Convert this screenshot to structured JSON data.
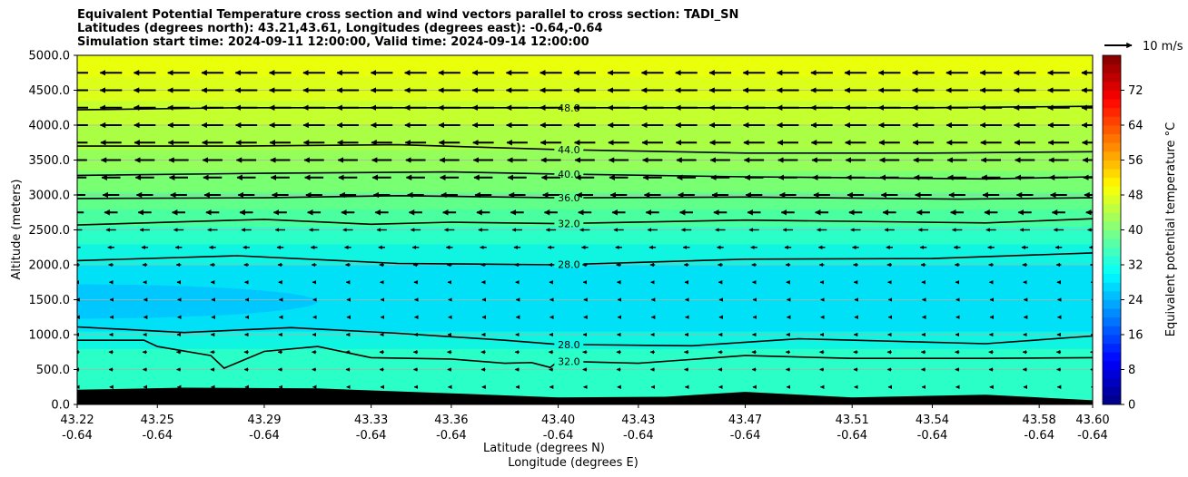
{
  "chart_data": {
    "type": "heatmap",
    "title_lines": [
      "Equivalent Potential Temperature cross section and wind vectors parallel to cross section: TADI_SN",
      "Latitudes (degrees north): 43.21,43.61, Longitudes (degrees east): -0.64,-0.64",
      "Simulation start time: 2024-09-11 12:00:00, Valid time: 2024-09-14 12:00:00"
    ],
    "ylabel": "Altitude (meters)",
    "xlabel_lines": [
      "Latitude (degrees N)",
      "Longitude (degrees E)"
    ],
    "ylim": [
      0,
      5000
    ],
    "y_ticks": [
      "0.0",
      "500.0",
      "1000.0",
      "1500.0",
      "2000.0",
      "2500.0",
      "3000.0",
      "3500.0",
      "4000.0",
      "4500.0",
      "5000.0"
    ],
    "x_ticks": [
      {
        "lat": "43.22",
        "lon": "-0.64"
      },
      {
        "lat": "43.25",
        "lon": "-0.64"
      },
      {
        "lat": "43.29",
        "lon": "-0.64"
      },
      {
        "lat": "43.33",
        "lon": "-0.64"
      },
      {
        "lat": "43.36",
        "lon": "-0.64"
      },
      {
        "lat": "43.40",
        "lon": "-0.64"
      },
      {
        "lat": "43.43",
        "lon": "-0.64"
      },
      {
        "lat": "43.47",
        "lon": "-0.64"
      },
      {
        "lat": "43.51",
        "lon": "-0.64"
      },
      {
        "lat": "43.54",
        "lon": "-0.64"
      },
      {
        "lat": "43.58",
        "lon": "-0.64"
      },
      {
        "lat": "43.60",
        "lon": "-0.64"
      }
    ],
    "colorbar": {
      "label": "Equivalent potential temperature °C",
      "range": [
        0,
        80
      ],
      "ticks": [
        "0",
        "8",
        "16",
        "24",
        "32",
        "40",
        "48",
        "56",
        "64",
        "72"
      ]
    },
    "wind_key": {
      "label": "10 m/s"
    },
    "fill_bands": [
      {
        "from_alt": 0,
        "to_alt": 800,
        "color": "#2bffc8"
      },
      {
        "from_alt": 800,
        "to_alt": 1050,
        "color": "#10f4e2"
      },
      {
        "from_alt": 1050,
        "to_alt": 2000,
        "color": "#00e1f8"
      },
      {
        "from_alt": 2000,
        "to_alt": 2300,
        "color": "#10f4e2"
      },
      {
        "from_alt": 2300,
        "to_alt": 2550,
        "color": "#2bffc8"
      },
      {
        "from_alt": 2550,
        "to_alt": 2800,
        "color": "#4aff9f"
      },
      {
        "from_alt": 2800,
        "to_alt": 3050,
        "color": "#5fff8a"
      },
      {
        "from_alt": 3050,
        "to_alt": 3350,
        "color": "#78ff72"
      },
      {
        "from_alt": 3350,
        "to_alt": 3650,
        "color": "#94ff5a"
      },
      {
        "from_alt": 3650,
        "to_alt": 4000,
        "color": "#aaff45"
      },
      {
        "from_alt": 4000,
        "to_alt": 4350,
        "color": "#c4ff2e"
      },
      {
        "from_alt": 4350,
        "to_alt": 4700,
        "color": "#dcff1a"
      },
      {
        "from_alt": 4700,
        "to_alt": 5000,
        "color": "#eaff0a"
      }
    ],
    "cold_pocket": {
      "color": "#00c8ff",
      "lat_range": [
        43.22,
        43.31
      ],
      "alt_range": [
        1230,
        1720
      ]
    },
    "contours": [
      {
        "label": "48.0",
        "label_lat": 43.404,
        "points": [
          [
            43.22,
            4220
          ],
          [
            43.28,
            4250
          ],
          [
            43.34,
            4250
          ],
          [
            43.4,
            4250
          ],
          [
            43.47,
            4250
          ],
          [
            43.54,
            4250
          ],
          [
            43.6,
            4270
          ]
        ]
      },
      {
        "label": "44.0",
        "label_lat": 43.404,
        "points": [
          [
            43.22,
            3700
          ],
          [
            43.28,
            3700
          ],
          [
            43.34,
            3720
          ],
          [
            43.4,
            3650
          ],
          [
            43.47,
            3600
          ],
          [
            43.54,
            3600
          ],
          [
            43.6,
            3620
          ]
        ]
      },
      {
        "label": "40.0",
        "label_lat": 43.404,
        "points": [
          [
            43.22,
            3280
          ],
          [
            43.29,
            3310
          ],
          [
            43.36,
            3330
          ],
          [
            43.4,
            3300
          ],
          [
            43.47,
            3260
          ],
          [
            43.56,
            3230
          ],
          [
            43.6,
            3260
          ]
        ]
      },
      {
        "label": "36.0",
        "label_lat": 43.404,
        "points": [
          [
            43.22,
            2950
          ],
          [
            43.29,
            2960
          ],
          [
            43.34,
            2990
          ],
          [
            43.4,
            2960
          ],
          [
            43.47,
            2970
          ],
          [
            43.55,
            2940
          ],
          [
            43.6,
            2960
          ]
        ]
      },
      {
        "label": "32.0",
        "label_lat": 43.404,
        "points": [
          [
            43.22,
            2570
          ],
          [
            43.29,
            2650
          ],
          [
            43.33,
            2580
          ],
          [
            43.36,
            2610
          ],
          [
            43.4,
            2590
          ],
          [
            43.47,
            2640
          ],
          [
            43.56,
            2600
          ],
          [
            43.6,
            2660
          ]
        ]
      },
      {
        "label": "28.0",
        "label_lat": 43.404,
        "points": [
          [
            43.22,
            2060
          ],
          [
            43.28,
            2130
          ],
          [
            43.34,
            2020
          ],
          [
            43.4,
            2000
          ],
          [
            43.47,
            2080
          ],
          [
            43.54,
            2090
          ],
          [
            43.6,
            2170
          ]
        ]
      },
      {
        "label": "28.0",
        "label_lat": 43.404,
        "points": [
          [
            43.22,
            1110
          ],
          [
            43.26,
            1030
          ],
          [
            43.3,
            1100
          ],
          [
            43.34,
            1020
          ],
          [
            43.38,
            920
          ],
          [
            43.4,
            860
          ],
          [
            43.45,
            840
          ],
          [
            43.49,
            940
          ],
          [
            43.56,
            870
          ],
          [
            43.6,
            980
          ]
        ]
      },
      {
        "label": "32.0",
        "label_lat": 43.404,
        "points": [
          [
            43.22,
            920
          ],
          [
            43.245,
            920
          ],
          [
            43.25,
            830
          ],
          [
            43.27,
            700
          ],
          [
            43.275,
            520
          ],
          [
            43.29,
            760
          ],
          [
            43.31,
            830
          ],
          [
            43.33,
            670
          ],
          [
            43.36,
            650
          ],
          [
            43.38,
            590
          ],
          [
            43.39,
            600
          ],
          [
            43.397,
            530
          ],
          [
            43.4,
            620
          ],
          [
            43.43,
            590
          ],
          [
            43.47,
            700
          ],
          [
            43.51,
            660
          ],
          [
            43.56,
            660
          ],
          [
            43.6,
            670
          ]
        ]
      }
    ],
    "terrain": {
      "color": "#000000",
      "points": [
        [
          43.22,
          210
        ],
        [
          43.26,
          240
        ],
        [
          43.31,
          230
        ],
        [
          43.36,
          160
        ],
        [
          43.4,
          100
        ],
        [
          43.44,
          110
        ],
        [
          43.47,
          180
        ],
        [
          43.51,
          100
        ],
        [
          43.56,
          140
        ],
        [
          43.6,
          60
        ]
      ]
    },
    "wind_rows": [
      {
        "alt": 4750,
        "u": -1.0
      },
      {
        "alt": 4500,
        "u": -1.0
      },
      {
        "alt": 4250,
        "u": -1.0
      },
      {
        "alt": 4000,
        "u": -0.98
      },
      {
        "alt": 3750,
        "u": -0.95
      },
      {
        "alt": 3500,
        "u": -0.9
      },
      {
        "alt": 3250,
        "u": -0.85
      },
      {
        "alt": 3000,
        "u": -0.75
      },
      {
        "alt": 2750,
        "u": -0.6
      },
      {
        "alt": 2500,
        "u": -0.45
      },
      {
        "alt": 2250,
        "u": -0.3
      },
      {
        "alt": 2000,
        "u": -0.22
      },
      {
        "alt": 1750,
        "u": -0.15
      },
      {
        "alt": 1500,
        "u": -0.1
      },
      {
        "alt": 1250,
        "u": -0.1
      },
      {
        "alt": 1000,
        "u": -0.15
      },
      {
        "alt": 750,
        "u": -0.2
      },
      {
        "alt": 500,
        "u": -0.18
      },
      {
        "alt": 250,
        "u": -0.12
      }
    ],
    "grid": "horizontal",
    "colors": {
      "colormap": "jet"
    }
  }
}
